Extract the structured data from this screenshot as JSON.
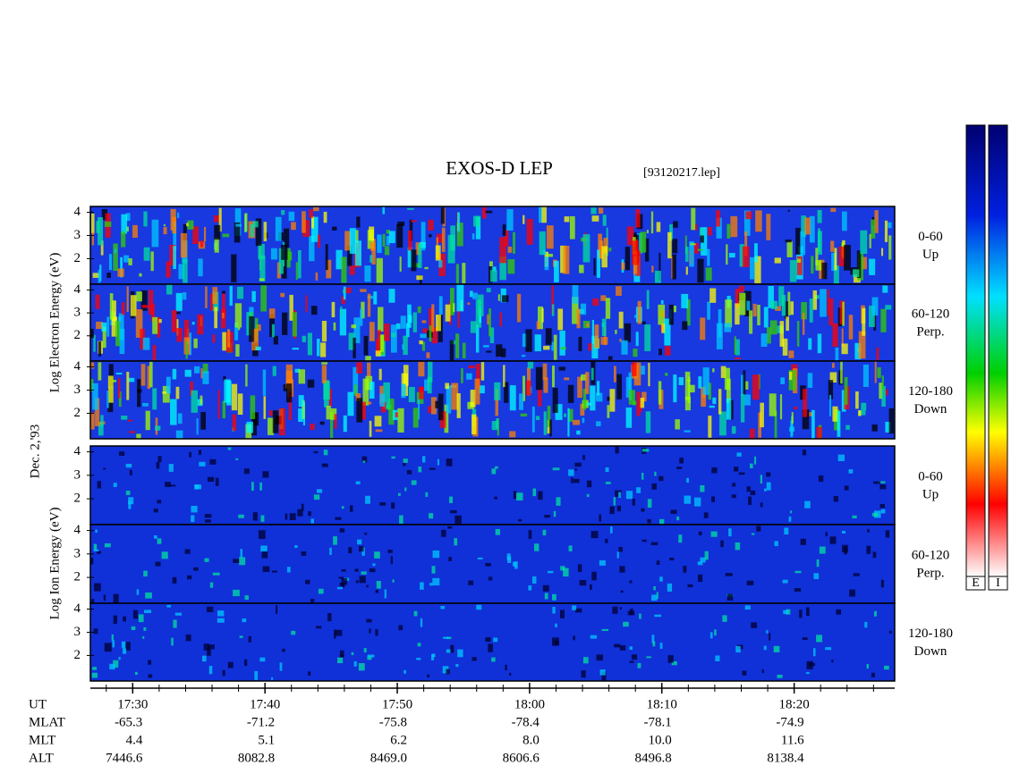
{
  "chart_data": {
    "type": "spectrogram",
    "title": "EXOS-D LEP",
    "file_label": "[93120217.lep]",
    "date_label": "Dec. 2,'93",
    "groups": [
      {
        "axis_label": "Log Electron Energy (eV)",
        "panels": [
          {
            "label": "0-60",
            "sublabel": "Up"
          },
          {
            "label": "60-120",
            "sublabel": "Perp."
          },
          {
            "label": "120-180",
            "sublabel": "Down"
          }
        ]
      },
      {
        "axis_label": "Log Ion Energy (eV)",
        "panels": [
          {
            "label": "0-60",
            "sublabel": "Up"
          },
          {
            "label": "60-120",
            "sublabel": "Perp."
          },
          {
            "label": "120-180",
            "sublabel": "Down"
          }
        ]
      }
    ],
    "ylim": [
      0.9,
      4.25
    ],
    "yticks": [
      2,
      3,
      4
    ],
    "xlim": [
      26.8,
      87.6
    ],
    "xticks": [
      {
        "value": 30,
        "label": "17:30"
      },
      {
        "value": 40,
        "label": "17:40"
      },
      {
        "value": 50,
        "label": "17:50"
      },
      {
        "value": 60,
        "label": "18:00"
      },
      {
        "value": 70,
        "label": "18:10"
      },
      {
        "value": 80,
        "label": "18:20"
      }
    ],
    "minor_xticks": [
      28,
      32,
      34,
      36,
      38,
      42,
      44,
      46,
      48,
      52,
      54,
      56,
      58,
      62,
      64,
      66,
      68,
      72,
      74,
      76,
      78,
      82,
      84,
      86
    ],
    "ephemeris": {
      "labels": [
        "UT",
        "MLAT",
        "MLT",
        "ALT"
      ],
      "rows": [
        [
          "-65.3",
          "-71.2",
          "-75.8",
          "-78.4",
          "-78.1",
          "-74.9"
        ],
        [
          "4.4",
          "5.1",
          "6.2",
          "8.0",
          "10.0",
          "11.6"
        ],
        [
          "7446.6",
          "8082.8",
          "8469.0",
          "8606.6",
          "8496.8",
          "8138.4"
        ]
      ]
    },
    "colorbar_labels": [
      "E",
      "I"
    ]
  }
}
